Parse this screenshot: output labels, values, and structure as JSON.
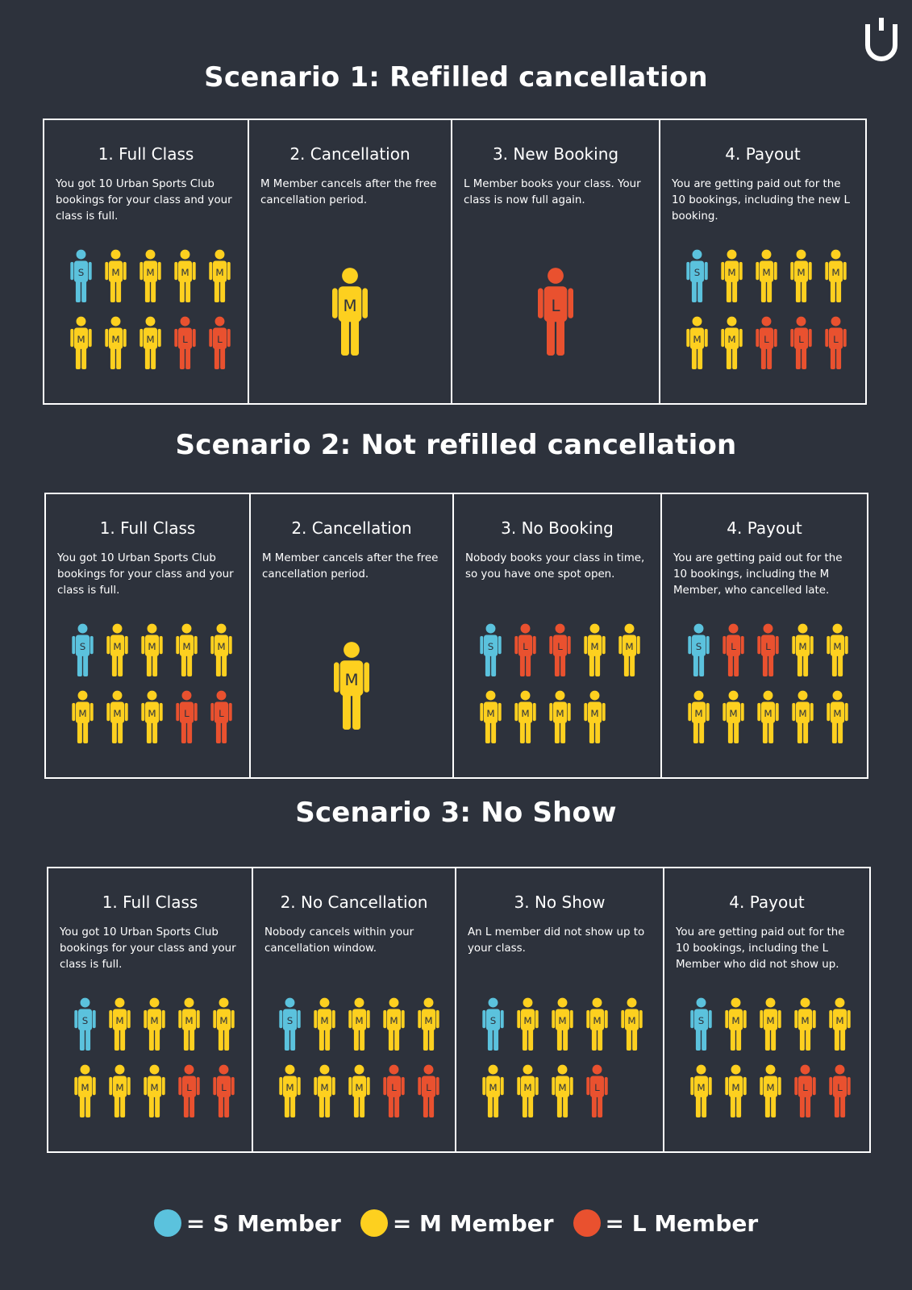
{
  "colors": {
    "s": "#5bc2dd",
    "m": "#fdd01f",
    "l": "#e9512f",
    "bg": "#2d323c"
  },
  "logo": "urban-sports-club-logo",
  "scenarios": [
    {
      "title": "Scenario 1: Refilled cancellation",
      "panels": [
        {
          "title": "1. Full Class",
          "desc": "You got 10 Urban Sports Club bookings for your class and your class is full.",
          "people": [
            "S",
            "M",
            "M",
            "M",
            "M",
            "M",
            "M",
            "M",
            "L",
            "L"
          ]
        },
        {
          "title": "2. Cancellation",
          "desc": "M Member cancels after the free cancellation period.",
          "big": "M"
        },
        {
          "title": "3. New Booking",
          "desc": "L Member books your class. Your class is now full again.",
          "big": "L"
        },
        {
          "title": "4. Payout",
          "desc": "You are getting paid out for the 10 bookings, including the new L booking.",
          "people": [
            "S",
            "M",
            "M",
            "M",
            "M",
            "M",
            "M",
            "L",
            "L",
            "L"
          ]
        }
      ]
    },
    {
      "title": "Scenario 2: Not refilled cancellation",
      "panels": [
        {
          "title": "1. Full Class",
          "desc": "You got 10 Urban Sports Club bookings for your class and your class is full.",
          "people": [
            "S",
            "M",
            "M",
            "M",
            "M",
            "M",
            "M",
            "M",
            "L",
            "L"
          ]
        },
        {
          "title": "2. Cancellation",
          "desc": "M Member cancels after the free cancellation period.",
          "big": "M"
        },
        {
          "title": "3. No Booking",
          "desc": "Nobody books your class in time, so you have one spot open.",
          "people": [
            "S",
            "L",
            "L",
            "M",
            "M",
            "M",
            "M",
            "M",
            "M"
          ]
        },
        {
          "title": "4. Payout",
          "desc": "You are getting paid out for the 10 bookings, including the M Member, who cancelled late.",
          "people": [
            "S",
            "L",
            "L",
            "M",
            "M",
            "M",
            "M",
            "M",
            "M",
            "M"
          ]
        }
      ]
    },
    {
      "title": "Scenario 3: No Show",
      "panels": [
        {
          "title": "1. Full Class",
          "desc": "You got 10 Urban Sports Club bookings for your class and your class is full.",
          "people": [
            "S",
            "M",
            "M",
            "M",
            "M",
            "M",
            "M",
            "M",
            "L",
            "L"
          ]
        },
        {
          "title": "2. No Cancellation",
          "desc": "Nobody cancels within your cancellation window.",
          "people": [
            "S",
            "M",
            "M",
            "M",
            "M",
            "M",
            "M",
            "M",
            "L",
            "L"
          ]
        },
        {
          "title": "3. No Show",
          "desc": "An L member did not show up to your class.",
          "people": [
            "S",
            "M",
            "M",
            "M",
            "M",
            "M",
            "M",
            "M",
            "L"
          ]
        },
        {
          "title": "4. Payout",
          "desc": "You are getting paid out for the 10 bookings, including the L Member who did not show up.",
          "people": [
            "S",
            "M",
            "M",
            "M",
            "M",
            "M",
            "M",
            "M",
            "L",
            "L"
          ]
        }
      ]
    }
  ],
  "legend": [
    {
      "key": "s",
      "label": "= S Member"
    },
    {
      "key": "m",
      "label": "= M Member"
    },
    {
      "key": "l",
      "label": "= L Member"
    }
  ]
}
